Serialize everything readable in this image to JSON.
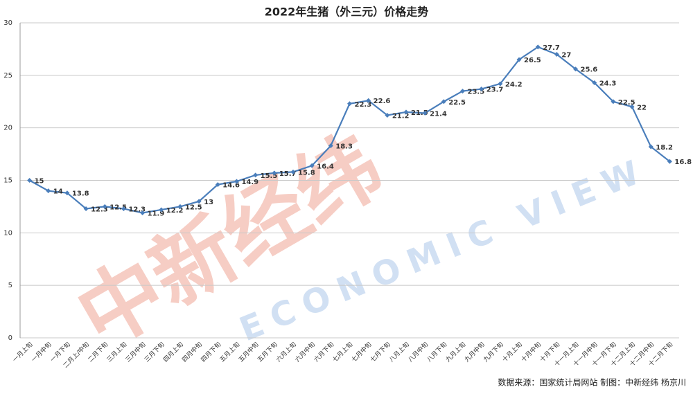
{
  "chart_data": {
    "type": "line",
    "title": "2022年生猪（外三元）价格走势",
    "categories": [
      "一月上旬",
      "一月中旬",
      "一月下旬",
      "二月上/中旬",
      "二月下旬",
      "三月上旬",
      "三月中旬",
      "三月下旬",
      "四月上旬",
      "四月中旬",
      "四月下旬",
      "五月上旬",
      "五月中旬",
      "五月下旬",
      "六月上旬",
      "六月中旬",
      "六月下旬",
      "七月上旬",
      "七月中旬",
      "七月下旬",
      "八月上旬",
      "八月中旬",
      "八月下旬",
      "九月上旬",
      "九月中旬",
      "九月下旬",
      "十月上旬",
      "十月中旬",
      "十月下旬",
      "十一月上旬",
      "十一月中旬",
      "十一月下旬",
      "十二月上旬",
      "十二月中旬",
      "十二月下旬"
    ],
    "values": [
      15,
      14,
      13.8,
      12.3,
      12.5,
      12.3,
      11.9,
      12.2,
      12.5,
      13,
      14.6,
      14.9,
      15.5,
      15.7,
      15.8,
      16.4,
      18.3,
      22.3,
      22.6,
      21.2,
      21.5,
      21.4,
      22.5,
      23.5,
      23.7,
      24.2,
      26.5,
      27.7,
      27,
      25.6,
      24.3,
      22.5,
      22,
      18.2,
      16.8
    ],
    "color": "#4a7ebb",
    "ylim": [
      0,
      30
    ],
    "yticks": [
      0,
      5,
      10,
      15,
      20,
      25,
      30
    ],
    "grid": true,
    "source": "数据来源：国家统计局网站  制图：中新经纬  杨京川",
    "watermark": [
      "中新经纬",
      "ECONOMIC VIEW"
    ]
  }
}
